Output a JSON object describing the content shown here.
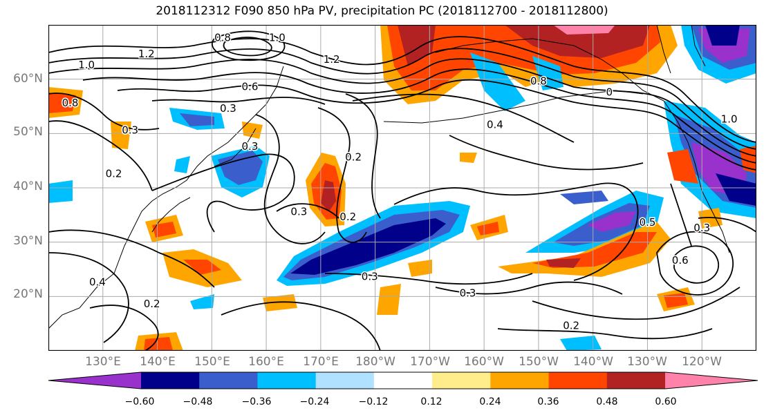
{
  "title": "2018112312 F090 850 hPa PV, precipitation PC (2018112700 - 2018112800)",
  "map": {
    "lat_range": [
      10,
      70
    ],
    "lon_range": [
      120,
      250
    ],
    "lat_labels": [
      "20°N",
      "30°N",
      "40°N",
      "50°N",
      "60°N"
    ],
    "lat_values": [
      20,
      30,
      40,
      50,
      60
    ],
    "lon_labels": [
      "130°E",
      "140°E",
      "150°E",
      "160°E",
      "170°E",
      "180°W",
      "170°W",
      "160°W",
      "150°W",
      "140°W",
      "130°W",
      "120°W"
    ],
    "lon_values": [
      130,
      140,
      150,
      160,
      170,
      180,
      190,
      200,
      210,
      220,
      230,
      240
    ],
    "contour_labels": [
      {
        "text": "0.8",
        "lon": 152,
        "lat": 67
      },
      {
        "text": "1.0",
        "lon": 162,
        "lat": 67
      },
      {
        "text": "1.2",
        "lon": 138,
        "lat": 64
      },
      {
        "text": "1.2",
        "lon": 172,
        "lat": 63
      },
      {
        "text": "1.0",
        "lon": 127,
        "lat": 62
      },
      {
        "text": "0.8",
        "lon": 124,
        "lat": 55
      },
      {
        "text": "0.6",
        "lon": 157,
        "lat": 58
      },
      {
        "text": "0.3",
        "lon": 153,
        "lat": 54
      },
      {
        "text": "0.3",
        "lon": 135,
        "lat": 50
      },
      {
        "text": "0.3",
        "lon": 157,
        "lat": 47
      },
      {
        "text": "0.2",
        "lon": 132,
        "lat": 42
      },
      {
        "text": "0.2",
        "lon": 176,
        "lat": 45
      },
      {
        "text": "0.3",
        "lon": 166,
        "lat": 35
      },
      {
        "text": "0.2",
        "lon": 175,
        "lat": 34
      },
      {
        "text": "0.4",
        "lon": 202,
        "lat": 51
      },
      {
        "text": "0.8",
        "lon": 210,
        "lat": 59
      },
      {
        "text": "0",
        "lon": 223,
        "lat": 57
      },
      {
        "text": "1.0",
        "lon": 245,
        "lat": 52
      },
      {
        "text": "0.5",
        "lon": 230,
        "lat": 33
      },
      {
        "text": "0.3",
        "lon": 240,
        "lat": 32
      },
      {
        "text": "0.6",
        "lon": 236,
        "lat": 26
      },
      {
        "text": "0.4",
        "lon": 129,
        "lat": 22
      },
      {
        "text": "0.2",
        "lon": 139,
        "lat": 18
      },
      {
        "text": "0.3",
        "lon": 179,
        "lat": 23
      },
      {
        "text": "0.3",
        "lon": 197,
        "lat": 20
      },
      {
        "text": "0.2",
        "lon": 216,
        "lat": 14
      }
    ]
  },
  "colorbar": {
    "colors": [
      "#9932cc",
      "#00008b",
      "#3a5fcd",
      "#00bfff",
      "#b0e2ff",
      "#ffffff",
      "#ffec8b",
      "#ffa500",
      "#ff4500",
      "#b22222",
      "#ff82ab"
    ],
    "tick_labels": [
      "−0.60",
      "−0.48",
      "−0.36",
      "−0.24",
      "−0.12",
      "0.12",
      "0.24",
      "0.36",
      "0.48",
      "0.60"
    ],
    "tick_values": [
      -0.6,
      -0.48,
      -0.36,
      -0.24,
      -0.12,
      0.12,
      0.24,
      0.36,
      0.48,
      0.6
    ]
  }
}
